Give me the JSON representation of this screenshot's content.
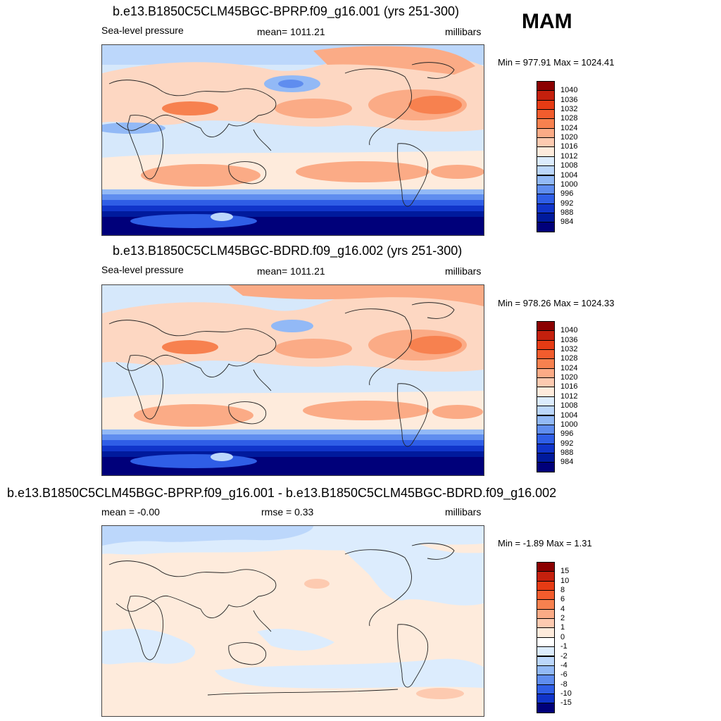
{
  "season": "MAM",
  "panels": [
    {
      "title": "b.e13.B1850C5CLM45BGC-BPRP.f09_g16.001 (yrs 251-300)",
      "left_label": "Sea-level pressure",
      "center_label": "mean= 1011.21",
      "units": "millibars",
      "minmax": "Min = 977.91 Max = 1024.41"
    },
    {
      "title": "b.e13.B1850C5CLM45BGC-BDRD.f09_g16.002 (yrs 251-300)",
      "left_label": "Sea-level pressure",
      "center_label": "mean= 1011.21",
      "units": "millibars",
      "minmax": "Min = 978.26 Max = 1024.33"
    },
    {
      "title": "b.e13.B1850C5CLM45BGC-BPRP.f09_g16.001 - b.e13.B1850C5CLM45BGC-BDRD.f09_g16.002",
      "left_label": "mean =  -0.00",
      "center_label": "rmse =   0.33",
      "units": "millibars",
      "minmax": "Min =  -1.89 Max =   1.31"
    }
  ],
  "colorbars": {
    "pressure": {
      "labels": [
        "1040",
        "1036",
        "1032",
        "1028",
        "1024",
        "1020",
        "1016",
        "1012",
        "1008",
        "1004",
        "1000",
        "996",
        "992",
        "988",
        "984"
      ],
      "colors": [
        "#8b0000",
        "#c4200d",
        "#e63b14",
        "#f25c2d",
        "#f7814f",
        "#fbab86",
        "#fdcab0",
        "#feebdc",
        "#dcecfd",
        "#bcd7fb",
        "#92b9f6",
        "#5f8def",
        "#2f5ee6",
        "#1034c9",
        "#001a9c",
        "#00007a"
      ]
    },
    "difference": {
      "labels": [
        "15",
        "10",
        "8",
        "6",
        "4",
        "2",
        "1",
        "0",
        "-1",
        "-2",
        "-4",
        "-6",
        "-8",
        "-10",
        "-15"
      ],
      "colors": [
        "#8b0000",
        "#c4200d",
        "#e63b14",
        "#f25c2d",
        "#f7814f",
        "#fbab86",
        "#fdcab0",
        "#feebdc",
        "#ffffff",
        "#dcecfd",
        "#bcd7fb",
        "#92b9f6",
        "#5f8def",
        "#2f5ee6",
        "#1034c9",
        "#00007a"
      ]
    }
  }
}
